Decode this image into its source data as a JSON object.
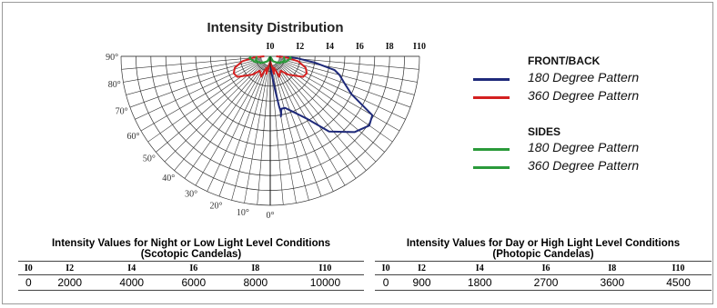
{
  "chart_data": {
    "type": "polar",
    "title": "Intensity Distribution",
    "radial_ticks": [
      "I0",
      "I2",
      "I4",
      "I6",
      "I8",
      "I10"
    ],
    "angle_labels": [
      "0°",
      "10°",
      "20°",
      "30°",
      "40°",
      "50°",
      "60°",
      "70°",
      "80°",
      "90°"
    ],
    "rmax": 10,
    "series": [
      {
        "group": "FRONT/BACK",
        "name": "180 Degree Pattern",
        "color": "#1f2a7a",
        "points": [
          [
            0,
            0
          ],
          [
            2,
            0.6
          ],
          [
            5,
            1.2
          ],
          [
            8,
            2.2
          ],
          [
            10,
            3.4
          ],
          [
            11,
            3.9
          ],
          [
            10,
            4.1
          ],
          [
            12,
            3.6
          ],
          [
            16,
            3.6
          ],
          [
            22,
            4.0
          ],
          [
            30,
            4.8
          ],
          [
            38,
            6.4
          ],
          [
            48,
            7.6
          ],
          [
            55,
            8.1
          ],
          [
            60,
            7.9
          ],
          [
            65,
            6.0
          ],
          [
            70,
            5.3
          ],
          [
            75,
            4.8
          ],
          [
            78,
            4.4
          ],
          [
            82,
            3.0
          ],
          [
            86,
            1.8
          ],
          [
            90,
            0.6
          ]
        ]
      },
      {
        "group": "FRONT/BACK",
        "name": "360 Degree Pattern",
        "color": "#d42020",
        "points": [
          [
            0,
            0
          ],
          [
            5,
            0.5
          ],
          [
            12,
            0.8
          ],
          [
            22,
            1.0
          ],
          [
            35,
            1.0
          ],
          [
            50,
            0.7
          ],
          [
            65,
            0.3
          ],
          [
            85,
            0
          ]
        ],
        "render": "lobes"
      },
      {
        "group": "SIDES",
        "name": "180 Degree Pattern",
        "color": "#2a9a3a",
        "render": "sides180"
      },
      {
        "group": "SIDES",
        "name": "360 Degree Pattern",
        "color": "#2a9a3a",
        "render": "sides360"
      }
    ]
  },
  "legend": {
    "front_back_heading": "FRONT/BACK",
    "front_180": "180 Degree Pattern",
    "front_360": "360 Degree Pattern",
    "sides_heading": "SIDES",
    "sides_180": "180 Degree Pattern",
    "sides_360": "360 Degree Pattern",
    "colors": {
      "navy": "#1f2a7a",
      "red": "#d42020",
      "green": "#2a9a3a"
    }
  },
  "tables": {
    "night": {
      "title_line1": "Intensity Values for Night or Low Light Level Conditions",
      "title_line2": "(Scotopic Candelas)",
      "headers": [
        "I0",
        "I2",
        "I4",
        "I6",
        "I8",
        "I10"
      ],
      "values": [
        "0",
        "2000",
        "4000",
        "6000",
        "8000",
        "10000"
      ]
    },
    "day": {
      "title_line1": "Intensity Values for Day or High Light Level Conditions",
      "title_line2": "(Photopic Candelas)",
      "headers": [
        "I0",
        "I2",
        "I4",
        "I6",
        "I8",
        "I10"
      ],
      "values": [
        "0",
        "900",
        "1800",
        "2700",
        "3600",
        "4500"
      ]
    }
  }
}
